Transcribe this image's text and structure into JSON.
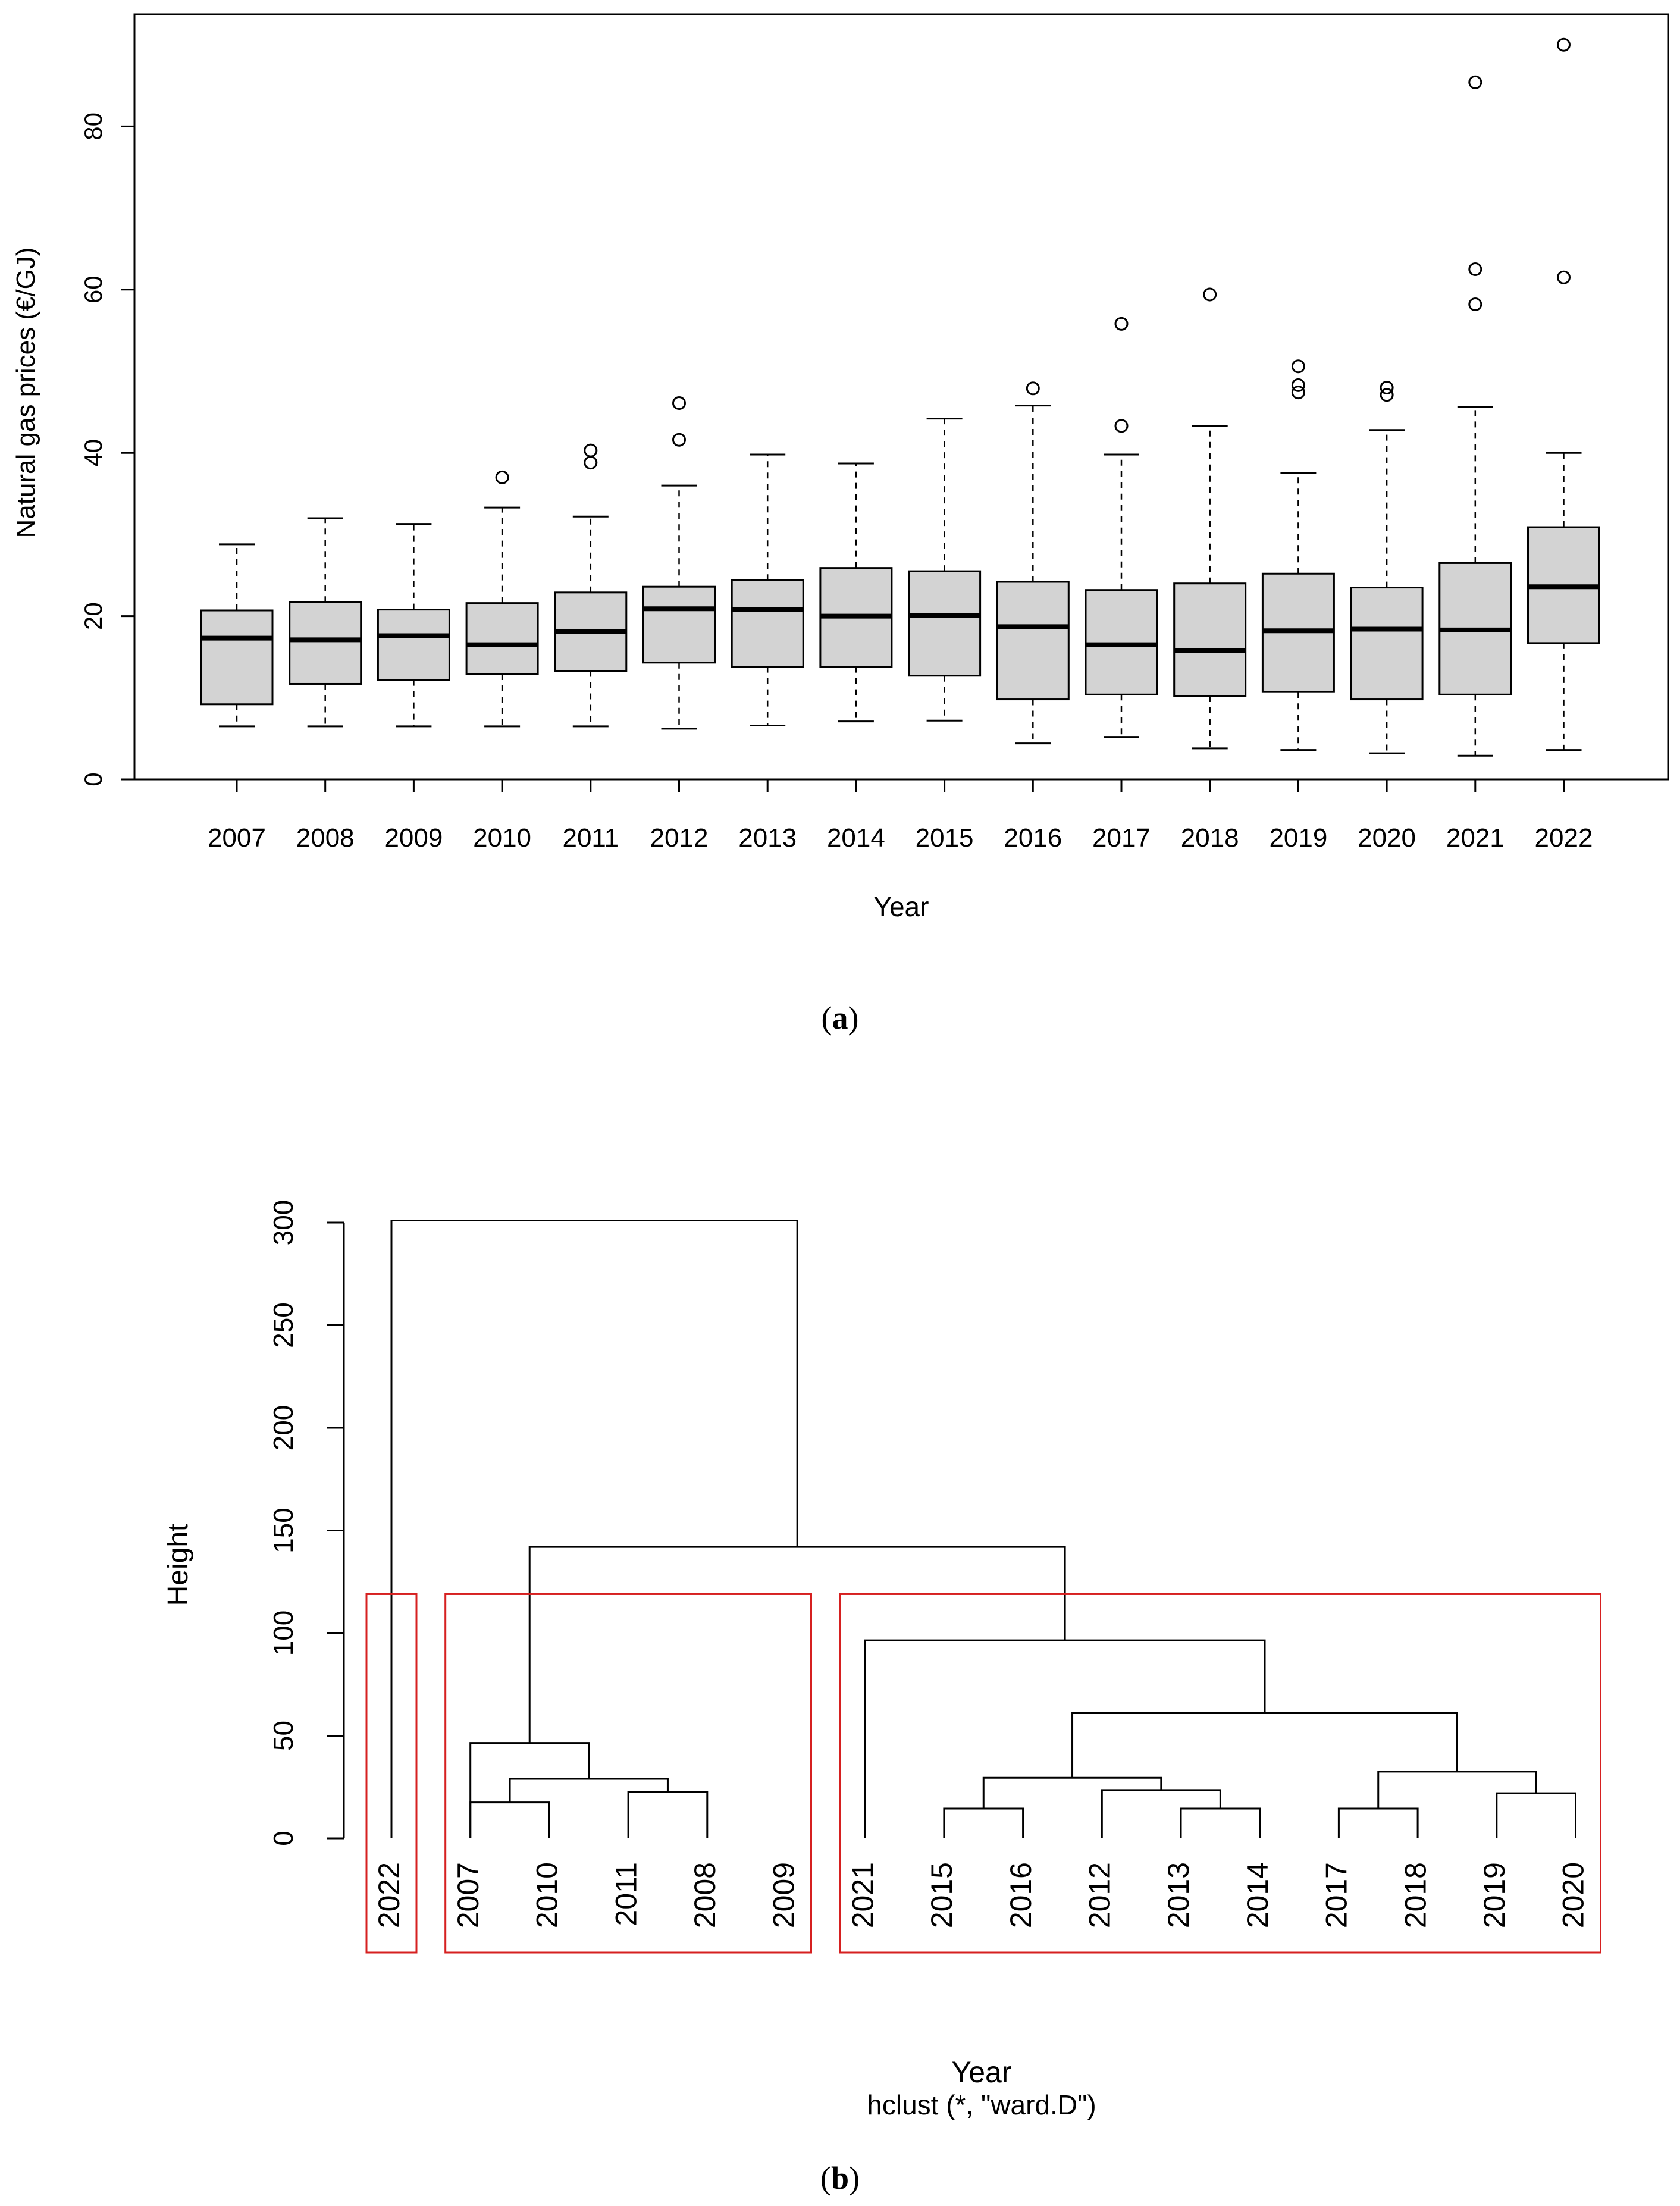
{
  "chart_data": [
    {
      "type": "boxplot",
      "panel": "a",
      "xlabel": "Year",
      "ylabel": "Natural gas prices (€/GJ)",
      "ylim": [
        0,
        90
      ],
      "yticks": [
        "0",
        "20",
        "40",
        "60",
        "80"
      ],
      "categories": [
        "2007",
        "2008",
        "2009",
        "2010",
        "2011",
        "2012",
        "2013",
        "2014",
        "2015",
        "2016",
        "2017",
        "2018",
        "2019",
        "2020",
        "2021",
        "2022"
      ],
      "boxes": [
        {
          "year": "2007",
          "whisker_low": 6.5,
          "q1": 9.2,
          "median": 17.3,
          "q3": 20.7,
          "whisker_high": 28.8,
          "outliers": []
        },
        {
          "year": "2008",
          "whisker_low": 6.5,
          "q1": 11.7,
          "median": 17.1,
          "q3": 21.7,
          "whisker_high": 32.0,
          "outliers": []
        },
        {
          "year": "2009",
          "whisker_low": 6.5,
          "q1": 12.2,
          "median": 17.6,
          "q3": 20.8,
          "whisker_high": 31.3,
          "outliers": []
        },
        {
          "year": "2010",
          "whisker_low": 6.5,
          "q1": 12.9,
          "median": 16.5,
          "q3": 21.6,
          "whisker_high": 33.3,
          "outliers": [
            37.0
          ]
        },
        {
          "year": "2011",
          "whisker_low": 6.5,
          "q1": 13.3,
          "median": 18.1,
          "q3": 22.9,
          "whisker_high": 32.2,
          "outliers": [
            38.8,
            40.3
          ]
        },
        {
          "year": "2012",
          "whisker_low": 6.2,
          "q1": 14.3,
          "median": 20.9,
          "q3": 23.6,
          "whisker_high": 36.0,
          "outliers": [
            41.6,
            46.1
          ]
        },
        {
          "year": "2013",
          "whisker_low": 6.6,
          "q1": 13.8,
          "median": 20.8,
          "q3": 24.4,
          "whisker_high": 39.8,
          "outliers": []
        },
        {
          "year": "2014",
          "whisker_low": 7.1,
          "q1": 13.8,
          "median": 20.0,
          "q3": 25.9,
          "whisker_high": 38.7,
          "outliers": []
        },
        {
          "year": "2015",
          "whisker_low": 7.2,
          "q1": 12.7,
          "median": 20.1,
          "q3": 25.5,
          "whisker_high": 44.2,
          "outliers": []
        },
        {
          "year": "2016",
          "whisker_low": 4.4,
          "q1": 9.8,
          "median": 18.7,
          "q3": 24.2,
          "whisker_high": 45.8,
          "outliers": [
            47.9
          ]
        },
        {
          "year": "2017",
          "whisker_low": 5.2,
          "q1": 10.4,
          "median": 16.5,
          "q3": 23.2,
          "whisker_high": 39.8,
          "outliers": [
            43.3,
            55.8
          ]
        },
        {
          "year": "2018",
          "whisker_low": 3.8,
          "q1": 10.2,
          "median": 15.8,
          "q3": 24.0,
          "whisker_high": 43.3,
          "outliers": [
            59.4
          ]
        },
        {
          "year": "2019",
          "whisker_low": 3.6,
          "q1": 10.7,
          "median": 18.2,
          "q3": 25.2,
          "whisker_high": 37.5,
          "outliers": [
            47.4,
            48.3,
            50.6
          ]
        },
        {
          "year": "2020",
          "whisker_low": 3.2,
          "q1": 9.8,
          "median": 18.4,
          "q3": 23.5,
          "whisker_high": 42.8,
          "outliers": [
            47.1,
            48.0
          ]
        },
        {
          "year": "2021",
          "whisker_low": 2.9,
          "q1": 10.4,
          "median": 18.3,
          "q3": 26.5,
          "whisker_high": 45.6,
          "outliers": [
            58.2,
            62.5,
            85.4
          ]
        },
        {
          "year": "2022",
          "whisker_low": 3.6,
          "q1": 16.7,
          "median": 23.6,
          "q3": 30.9,
          "whisker_high": 40.0,
          "outliers": [
            61.5,
            90.0
          ]
        }
      ]
    },
    {
      "type": "dendrogram",
      "panel": "b",
      "ylabel": "Height",
      "xlabel": "Year",
      "subtitle": "hclust (*, \"ward.D\")",
      "ylim": [
        0,
        300
      ],
      "yticks": [
        "0",
        "50",
        "100",
        "150",
        "200",
        "250",
        "300"
      ],
      "leaves": [
        "2022",
        "2007",
        "2010",
        "2011",
        "2008",
        "2009",
        "2021",
        "2015",
        "2016",
        "2012",
        "2013",
        "2014",
        "2017",
        "2018",
        "2019",
        "2020"
      ],
      "merges": [
        {
          "left": [
            "L",
            1
          ],
          "right": [
            "L",
            2
          ],
          "height": 17.5
        },
        {
          "left": [
            "L",
            3
          ],
          "right": [
            "L",
            4
          ],
          "height": 22.5
        },
        {
          "left": [
            "M",
            0
          ],
          "right": [
            "M",
            1
          ],
          "height": 29.0
        },
        {
          "left": [
            "L",
            1
          ],
          "right": [
            "M",
            2
          ],
          "height": 46.5
        },
        {
          "left": [
            "L",
            7
          ],
          "right": [
            "L",
            8
          ],
          "height": 14.5
        },
        {
          "left": [
            "L",
            10
          ],
          "right": [
            "L",
            11
          ],
          "height": 14.5
        },
        {
          "left": [
            "L",
            9
          ],
          "right": [
            "M",
            5
          ],
          "height": 23.5
        },
        {
          "left": [
            "M",
            4
          ],
          "right": [
            "M",
            6
          ],
          "height": 29.5
        },
        {
          "left": [
            "L",
            12
          ],
          "right": [
            "L",
            13
          ],
          "height": 14.5
        },
        {
          "left": [
            "L",
            14
          ],
          "right": [
            "L",
            15
          ],
          "height": 22.0
        },
        {
          "left": [
            "M",
            8
          ],
          "right": [
            "M",
            9
          ],
          "height": 32.5
        },
        {
          "left": [
            "M",
            7
          ],
          "right": [
            "M",
            10
          ],
          "height": 61.0
        },
        {
          "left": [
            "L",
            6
          ],
          "right": [
            "M",
            11
          ],
          "height": 96.5
        },
        {
          "left": [
            "M",
            3
          ],
          "right": [
            "M",
            12
          ],
          "height": 142.0
        },
        {
          "left": [
            "L",
            0
          ],
          "right": [
            "M",
            13
          ],
          "height": 301.0
        }
      ],
      "clusters": [
        [
          "2022"
        ],
        [
          "2007",
          "2010",
          "2011",
          "2008",
          "2009"
        ],
        [
          "2021",
          "2015",
          "2016",
          "2012",
          "2013",
          "2014",
          "2017",
          "2018",
          "2019",
          "2020"
        ]
      ],
      "cluster_box_color": "#d62020",
      "cluster_box_top_height": 119
    }
  ],
  "captions": {
    "a": "a",
    "b": "b"
  }
}
